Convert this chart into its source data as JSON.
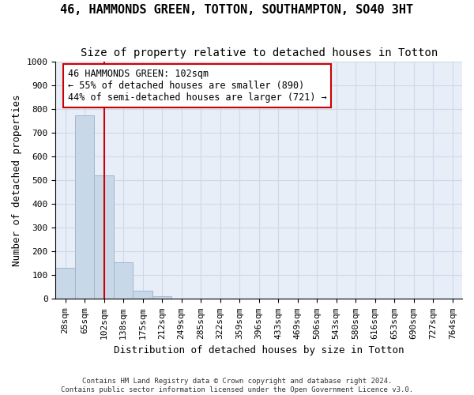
{
  "title1": "46, HAMMONDS GREEN, TOTTON, SOUTHAMPTON, SO40 3HT",
  "title2": "Size of property relative to detached houses in Totton",
  "xlabel": "Distribution of detached houses by size in Totton",
  "ylabel": "Number of detached properties",
  "footnote1": "Contains HM Land Registry data © Crown copyright and database right 2024.",
  "footnote2": "Contains public sector information licensed under the Open Government Licence v3.0.",
  "bin_labels": [
    "28sqm",
    "65sqm",
    "102sqm",
    "138sqm",
    "175sqm",
    "212sqm",
    "249sqm",
    "285sqm",
    "322sqm",
    "359sqm",
    "396sqm",
    "433sqm",
    "469sqm",
    "506sqm",
    "543sqm",
    "580sqm",
    "616sqm",
    "653sqm",
    "690sqm",
    "727sqm",
    "764sqm"
  ],
  "bar_values": [
    130,
    775,
    520,
    155,
    35,
    10,
    2,
    1,
    0,
    0,
    0,
    0,
    0,
    0,
    0,
    0,
    0,
    0,
    0,
    0,
    0
  ],
  "bar_color": "#c8d8e8",
  "bar_edge_color": "#a0b8cc",
  "vline_x": 2,
  "vline_color": "#cc0000",
  "annotation_text": "46 HAMMONDS GREEN: 102sqm\n← 55% of detached houses are smaller (890)\n44% of semi-detached houses are larger (721) →",
  "annotation_box_color": "#ffffff",
  "annotation_box_edge_color": "#cc0000",
  "ylim": [
    0,
    1000
  ],
  "yticks": [
    0,
    100,
    200,
    300,
    400,
    500,
    600,
    700,
    800,
    900,
    1000
  ],
  "grid_color": "#d0d8e8",
  "background_color": "#e8eef8",
  "title1_fontsize": 11,
  "title2_fontsize": 10,
  "xlabel_fontsize": 9,
  "ylabel_fontsize": 9,
  "tick_fontsize": 8,
  "annotation_fontsize": 8.5
}
